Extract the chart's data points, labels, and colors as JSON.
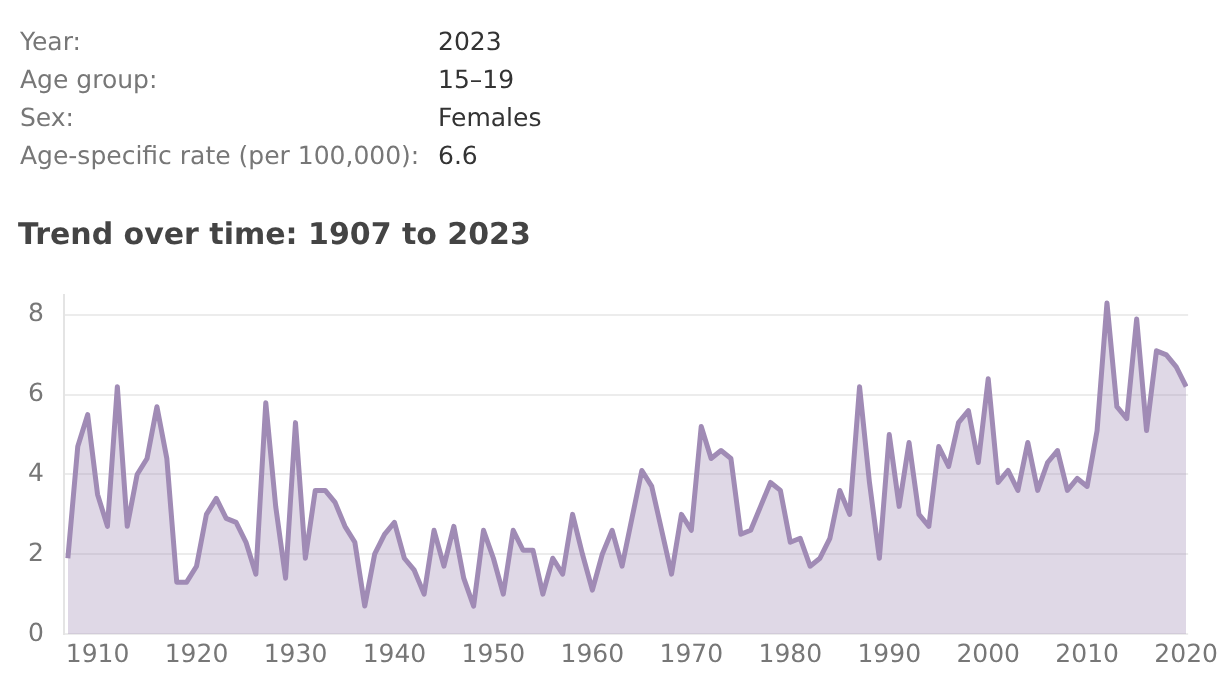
{
  "chart_data": {
    "type": "area",
    "title": "Trend over time: 1907 to 2023",
    "annotations": [
      "Year:",
      "2023",
      "Age group:",
      "15–19",
      "Sex:",
      "Females",
      "Age-specific rate (per 100,000):",
      "6.6"
    ],
    "x": [
      1907,
      1908,
      1909,
      1910,
      1911,
      1912,
      1913,
      1914,
      1915,
      1916,
      1917,
      1918,
      1919,
      1920,
      1921,
      1922,
      1923,
      1924,
      1925,
      1926,
      1927,
      1928,
      1929,
      1930,
      1931,
      1932,
      1933,
      1934,
      1935,
      1936,
      1937,
      1938,
      1939,
      1940,
      1941,
      1942,
      1943,
      1944,
      1945,
      1946,
      1947,
      1948,
      1949,
      1950,
      1951,
      1952,
      1953,
      1954,
      1955,
      1956,
      1957,
      1958,
      1959,
      1960,
      1961,
      1962,
      1963,
      1964,
      1965,
      1966,
      1967,
      1968,
      1969,
      1970,
      1971,
      1972,
      1973,
      1974,
      1975,
      1976,
      1977,
      1978,
      1979,
      1980,
      1981,
      1982,
      1983,
      1984,
      1985,
      1986,
      1987,
      1988,
      1989,
      1990,
      1991,
      1992,
      1993,
      1994,
      1995,
      1996,
      1997,
      1998,
      1999,
      2000,
      2001,
      2002,
      2003,
      2004,
      2005,
      2006,
      2007,
      2008,
      2009,
      2010,
      2011,
      2012,
      2013,
      2014,
      2015,
      2016,
      2017,
      2018,
      2019,
      2020
    ],
    "series": [
      {
        "color": "#a08bb5",
        "values": [
          1.9,
          4.7,
          5.5,
          3.5,
          2.7,
          6.2,
          2.7,
          4.0,
          4.4,
          5.7,
          4.4,
          1.3,
          1.3,
          1.7,
          3.0,
          3.4,
          2.9,
          2.8,
          2.3,
          1.5,
          5.8,
          3.2,
          1.4,
          5.3,
          1.9,
          3.6,
          3.6,
          3.3,
          2.7,
          2.3,
          0.7,
          2.0,
          2.5,
          2.8,
          1.9,
          1.6,
          1.0,
          2.6,
          1.7,
          2.7,
          1.4,
          0.7,
          2.6,
          1.9,
          1.0,
          2.6,
          2.1,
          2.1,
          1.0,
          1.9,
          1.5,
          3.0,
          2.0,
          1.1,
          2.0,
          2.6,
          1.7,
          2.9,
          4.1,
          3.7,
          2.6,
          1.5,
          3.0,
          2.6,
          5.2,
          4.4,
          4.6,
          4.4,
          2.5,
          2.6,
          3.2,
          3.8,
          3.6,
          2.3,
          2.4,
          1.7,
          1.9,
          2.4,
          3.6,
          3.0,
          6.2,
          3.8,
          1.9,
          5.0,
          3.2,
          4.8,
          3.0,
          2.7,
          4.7,
          4.2,
          5.3,
          5.6,
          4.3,
          6.4,
          3.8,
          4.1,
          3.6,
          4.8,
          3.6,
          4.3,
          4.6,
          3.6,
          3.9,
          3.7,
          5.1,
          8.3,
          5.7,
          5.4,
          7.9,
          5.1,
          7.1,
          7.0,
          6.7,
          6.2
        ]
      }
    ],
    "xlim": [
      1906.6,
      2020.2
    ],
    "xticks": [
      1910,
      1920,
      1930,
      1940,
      1950,
      1960,
      1970,
      1980,
      1990,
      2000,
      2010,
      2020
    ],
    "ylim": [
      0,
      8.5
    ],
    "yticks": [
      0,
      2,
      4,
      6,
      8
    ],
    "grid": "y",
    "marker": "none",
    "line_style": "solid",
    "legend": false
  }
}
